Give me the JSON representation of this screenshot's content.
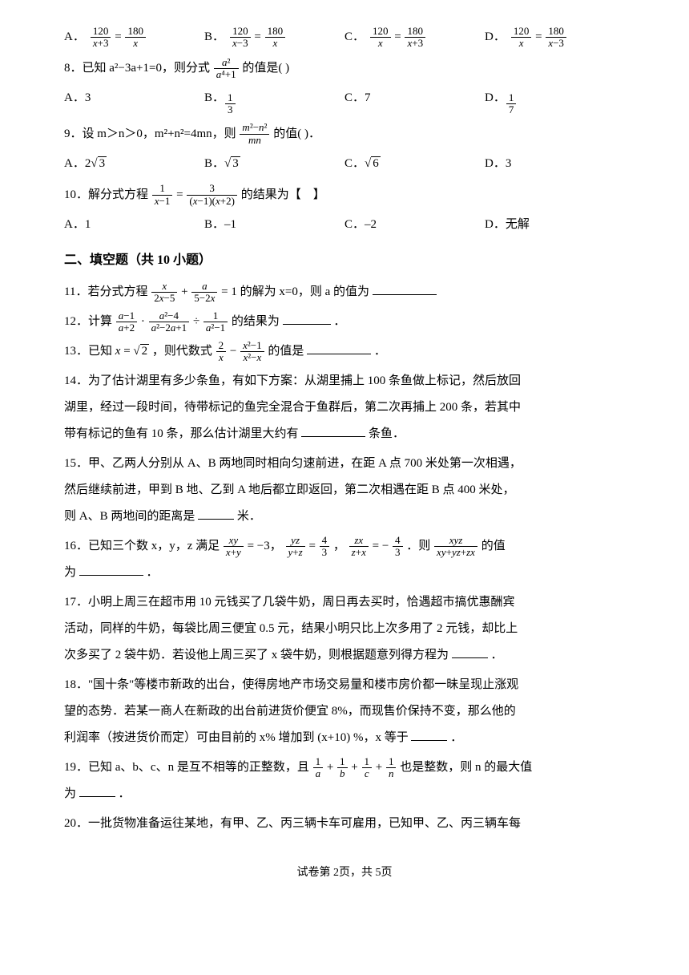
{
  "q7": {
    "A_label": "A．",
    "B_label": "B．",
    "C_label": "C．",
    "D_label": "D．"
  },
  "q8": {
    "text_prefix": "8．已知 a²−3a+1=0，则分式",
    "text_suffix": "的值是(    )",
    "A_label": "A．3",
    "B_label": "B．",
    "C_label": "C．7",
    "D_label": "D．"
  },
  "q9": {
    "text_prefix": "9．设 m＞n＞0，m²+n²=4mn，则",
    "text_suffix": "的值(    )．",
    "A_label": "A．2",
    "B_label": "B．",
    "C_label": "C．",
    "D_label": "D．3"
  },
  "q10": {
    "text_prefix": "10．解分式方程",
    "text_suffix": "的结果为【　】",
    "A": "A．1",
    "B": "B．–1",
    "C": "C．–2",
    "D": "D．无解"
  },
  "section2": "二、填空题（共 10 小题）",
  "q11": {
    "text_prefix": "11．若分式方程",
    "text_mid": "的解为 x=0，则 a 的值为"
  },
  "q12": {
    "text_prefix": "12．计算",
    "text_suffix": "的结果为",
    "period": "．"
  },
  "q13": {
    "text_prefix": "13．已知",
    "text_mid": "，则代数式",
    "text_suffix": "的值是",
    "period": "．"
  },
  "q14": {
    "line1": "14．为了估计湖里有多少条鱼，有如下方案：从湖里捕上 100 条鱼做上标记，然后放回",
    "line2": "湖里，经过一段时间，待带标记的鱼完全混合于鱼群后，第二次再捕上 200 条，若其中",
    "line3_prefix": "带有标记的鱼有 10 条，那么估计湖里大约有",
    "line3_suffix": "条鱼．"
  },
  "q15": {
    "line1": "15．甲、乙两人分别从 A、B 两地同时相向匀速前进，在距 A 点 700 米处第一次相遇，",
    "line2": "然后继续前进，甲到 B 地、乙到 A 地后都立即返回，第二次相遇在距 B 点 400 米处，",
    "line3_prefix": "则 A、B 两地间的距离是",
    "line3_suffix": "米．"
  },
  "q16": {
    "text_prefix": "16．已知三个数 x，y，z 满足",
    "text_suffix": "的值",
    "line2_prefix": "为",
    "period": "．"
  },
  "q17": {
    "line1": "17．小明上周三在超市用 10 元钱买了几袋牛奶，周日再去买时，恰遇超市搞优惠酬宾",
    "line2": "活动，同样的牛奶，每袋比周三便宜 0.5 元，结果小明只比上次多用了 2 元钱，却比上",
    "line3_prefix": "次多买了 2 袋牛奶．若设他上周三买了 x 袋牛奶，则根据题意列得方程为",
    "period": "．"
  },
  "q18": {
    "line1": "18．\"国十条\"等楼市新政的出台，使得房地产市场交易量和楼市房价都一昧呈现止涨观",
    "line2": "望的态势．若某一商人在新政的出台前进货价便宜 8%，而现售价保持不变，那么他的",
    "line3_prefix": "利润率（按进货价而定）可由目前的 x% 增加到 (x+10) %，x 等于",
    "period": "．"
  },
  "q19": {
    "text_prefix": "19．已知 a、b、c、n 是互不相等的正整数，且",
    "text_suffix": "也是整数，则 n 的最大值",
    "line2_prefix": "为",
    "period": "．"
  },
  "q20": {
    "text": "20．一批货物准备运往某地，有甲、乙、丙三辆卡车可雇用，已知甲、乙、丙三辆车每"
  },
  "footer": "试卷第 2页，共 5页"
}
